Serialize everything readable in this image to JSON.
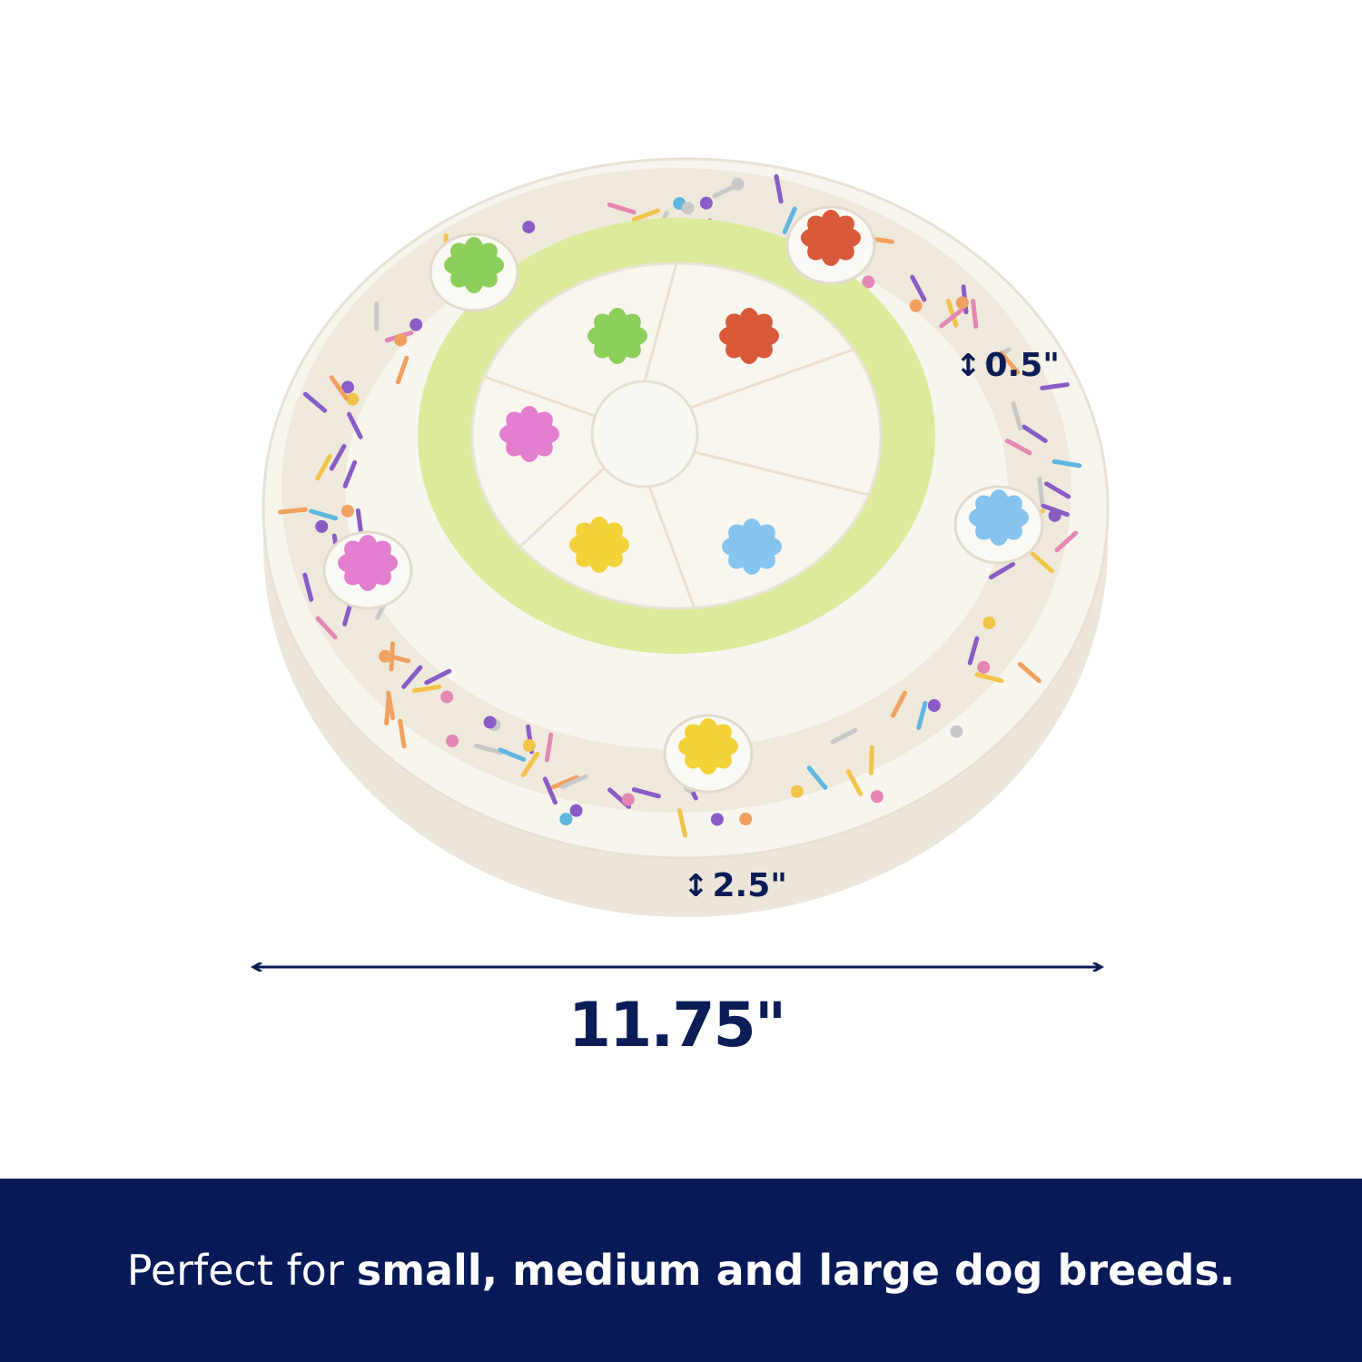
{
  "dimensions": {
    "depth": "0.5\"",
    "height": "2.5\"",
    "width": "11.75\""
  },
  "banner": {
    "text_regular": "Perfect for",
    "text_bold": "small, medium and large dog breeds.",
    "background": "#061a58"
  },
  "colors": {
    "ink": "#0b1d56",
    "disc": "#f7f3ea",
    "ring": "#dcea9c",
    "flowers": [
      "#8ccf5a",
      "#d9593b",
      "#e47fd0",
      "#f3d23a",
      "#86c4ee"
    ]
  }
}
